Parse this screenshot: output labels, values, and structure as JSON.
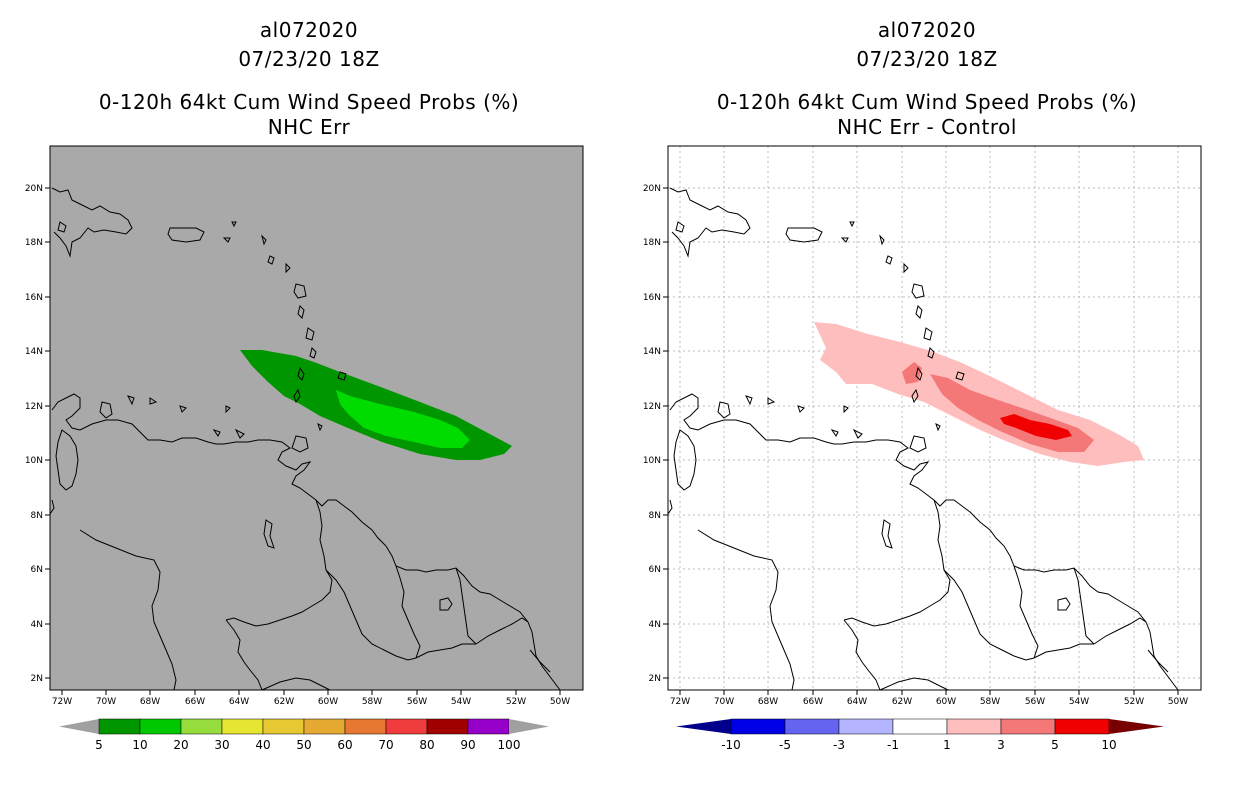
{
  "left_panel": {
    "storm_id": "al072020",
    "datetime": "07/23/20 18Z",
    "product": "0-120h 64kt Cum Wind Speed Probs (%)",
    "subtitle": "NHC Err",
    "background_color": "#a9a9a9",
    "colorbar": {
      "labels": [
        "5",
        "10",
        "20",
        "30",
        "40",
        "50",
        "60",
        "70",
        "80",
        "90",
        "100"
      ],
      "colors": [
        "#009600",
        "#00c800",
        "#96dc3c",
        "#e6e632",
        "#e6c832",
        "#e6aa32",
        "#e67832",
        "#f03c3c",
        "#a00000",
        "#9600c8"
      ],
      "end_color": "#a0a0a0"
    }
  },
  "right_panel": {
    "storm_id": "al072020",
    "datetime": "07/23/20 18Z",
    "product": "0-120h 64kt Cum Wind Speed Probs (%)",
    "subtitle": "NHC Err - Control",
    "background_color": "#ffffff",
    "colorbar": {
      "labels": [
        "-10",
        "-5",
        "-3",
        "-1",
        "1",
        "3",
        "5",
        "10"
      ],
      "colors": [
        "#0000e6",
        "#6464f0",
        "#b4b4ff",
        "#ffffff",
        "#ffbebe",
        "#f57878",
        "#f00000"
      ],
      "low_end_color": "#00008c",
      "high_end_color": "#780000"
    }
  },
  "axes": {
    "lat_labels": [
      "20N",
      "18N",
      "16N",
      "14N",
      "12N",
      "10N",
      "8N",
      "6N",
      "4N",
      "2N"
    ],
    "lon_labels": [
      "72W",
      "70W",
      "68W",
      "66W",
      "64W",
      "62W",
      "60W",
      "58W",
      "56W",
      "54W",
      "52W",
      "50W"
    ]
  }
}
